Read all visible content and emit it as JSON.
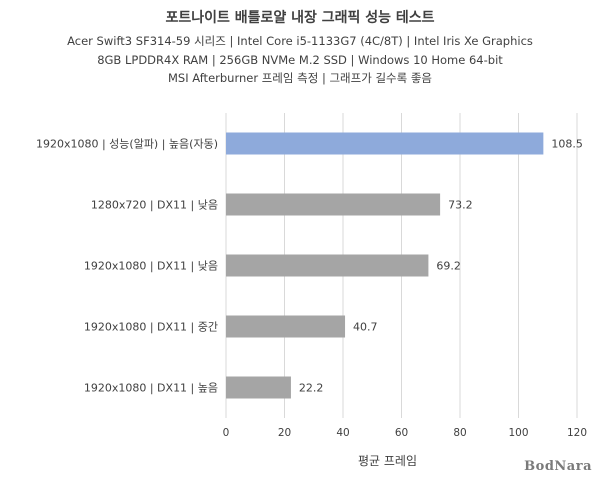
{
  "chart_data": {
    "type": "bar",
    "orientation": "horizontal",
    "title": "포트나이트 배틀로얄 내장 그래픽 성능 테스트",
    "subtitle": [
      "Acer Swift3 SF314-59 시리즈 | Intel Core i5-1133G7 (4C/8T) | Intel Iris Xe Graphics",
      "8GB LPDDR4X RAM | 256GB NVMe M.2 SSD | Windows 10 Home 64-bit",
      "MSI Afterburner 프레임 측정 | 그래프가 길수록 좋음"
    ],
    "xlabel": "평균 프레임",
    "ylabel": "",
    "xlim": [
      0,
      120
    ],
    "xticks": [
      0,
      20,
      40,
      60,
      80,
      100,
      120
    ],
    "grid": "vertical",
    "categories": [
      "1920x1080 | 성능(알파) | 높음(자동)",
      "1280x720 | DX11 | 낮음",
      "1920x1080 | DX11 | 낮음",
      "1920x1080 | DX11 | 중간",
      "1920x1080 | DX11 | 높음"
    ],
    "values": [
      108.5,
      73.2,
      69.2,
      40.7,
      22.2
    ],
    "value_labels": [
      "108.5",
      "73.2",
      "69.2",
      "40.7",
      "22.2"
    ],
    "colors": [
      "#8eaadb",
      "#a5a5a5",
      "#a5a5a5",
      "#a5a5a5",
      "#a5a5a5"
    ]
  },
  "watermark": "BodNara"
}
